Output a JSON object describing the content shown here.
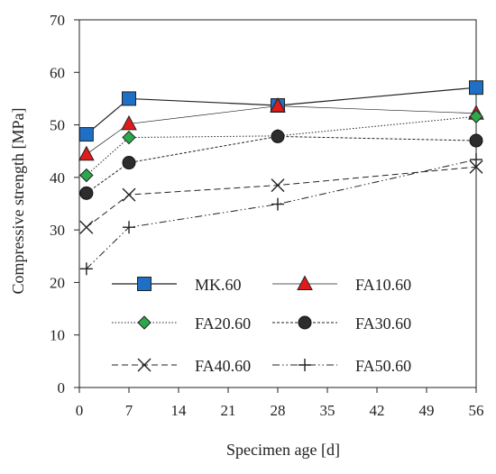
{
  "chart_data": {
    "type": "line",
    "xlabel": "Specimen age [d]",
    "ylabel": "Compressive strength [MPa]",
    "xlim": [
      0,
      56
    ],
    "ylim": [
      0,
      70
    ],
    "xticks": [
      0,
      7,
      14,
      21,
      28,
      35,
      42,
      49,
      56
    ],
    "yticks": [
      0,
      10,
      20,
      30,
      40,
      50,
      60,
      70
    ],
    "grid": false,
    "legend_position": "lower-right inside plot, two columns",
    "series": [
      {
        "name": "MK.60",
        "x": [
          1,
          7,
          28,
          56
        ],
        "values": [
          48.2,
          55.0,
          53.7,
          57.1
        ],
        "marker": "square",
        "color": "#1f6fc5",
        "line": "solid"
      },
      {
        "name": "FA10.60",
        "x": [
          1,
          7,
          28,
          56
        ],
        "values": [
          44.4,
          50.2,
          53.6,
          52.2
        ],
        "marker": "triangle",
        "color": "#e01b1b",
        "line": "thin-solid"
      },
      {
        "name": "FA20.60",
        "x": [
          1,
          7,
          28,
          56
        ],
        "values": [
          40.4,
          47.6,
          47.9,
          51.6
        ],
        "marker": "diamond",
        "color": "#2aa84a",
        "line": "dotted"
      },
      {
        "name": "FA30.60",
        "x": [
          1,
          7,
          28,
          56
        ],
        "values": [
          37.0,
          42.8,
          47.8,
          47.0
        ],
        "marker": "circle",
        "color": "#2d2d2d",
        "line": "short-dash"
      },
      {
        "name": "FA40.60",
        "x": [
          1,
          7,
          28,
          56
        ],
        "values": [
          30.5,
          36.7,
          38.5,
          42.0
        ],
        "marker": "x",
        "color": "#222222",
        "line": "dashed"
      },
      {
        "name": "FA50.60",
        "x": [
          1,
          7,
          28,
          56
        ],
        "values": [
          22.6,
          30.5,
          34.9,
          43.4
        ],
        "marker": "plus",
        "color": "#222222",
        "line": "dash-dot-dot"
      }
    ]
  }
}
